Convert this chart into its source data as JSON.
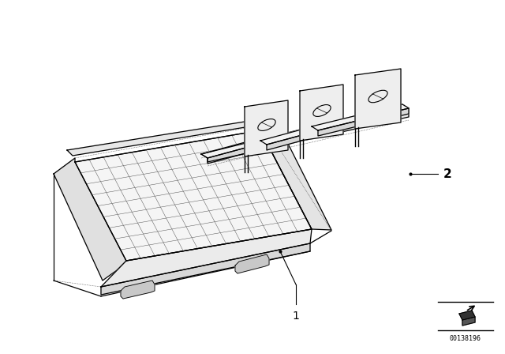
{
  "background_color": "#ffffff",
  "line_color": "#000000",
  "part1_label": "1",
  "part2_label": "2",
  "part_number": "00138196",
  "fig_width": 6.4,
  "fig_height": 4.48,
  "dpi": 100,
  "grid_color": "#444444",
  "face_color_top": "#f0f0f0",
  "face_color_side": "#d8d8d8",
  "face_color_front": "#e4e4e4",
  "bracket_face": "#f2f2f2",
  "bracket_side": "#e0e0e0"
}
